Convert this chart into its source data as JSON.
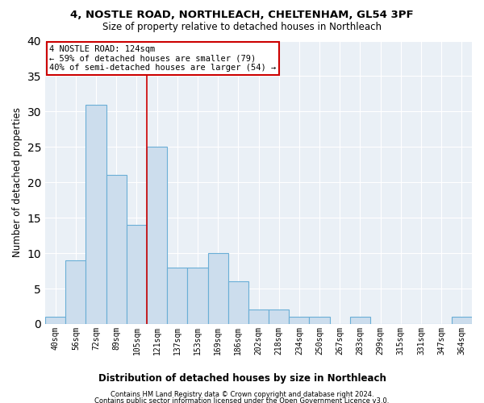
{
  "title1": "4, NOSTLE ROAD, NORTHLEACH, CHELTENHAM, GL54 3PF",
  "title2": "Size of property relative to detached houses in Northleach",
  "xlabel": "Distribution of detached houses by size in Northleach",
  "ylabel": "Number of detached properties",
  "bar_color": "#ccdded",
  "bar_edge_color": "#6aaed6",
  "background_color": "#eaf0f6",
  "grid_color": "#ffffff",
  "annotation_text": "4 NOSTLE ROAD: 124sqm\n← 59% of detached houses are smaller (79)\n40% of semi-detached houses are larger (54) →",
  "ylim": [
    0,
    40
  ],
  "yticks": [
    0,
    5,
    10,
    15,
    20,
    25,
    30,
    35,
    40
  ],
  "footer1": "Contains HM Land Registry data © Crown copyright and database right 2024.",
  "footer2": "Contains public sector information licensed under the Open Government Licence v3.0.",
  "all_bar_labels": [
    "40sqm",
    "56sqm",
    "72sqm",
    "89sqm",
    "105sqm",
    "121sqm",
    "137sqm",
    "153sqm",
    "169sqm",
    "186sqm",
    "202sqm",
    "218sqm",
    "234sqm",
    "250sqm",
    "267sqm",
    "283sqm",
    "299sqm",
    "315sqm",
    "331sqm",
    "347sqm",
    "364sqm"
  ],
  "all_bar_values": [
    1,
    9,
    31,
    21,
    14,
    25,
    8,
    8,
    10,
    6,
    2,
    2,
    1,
    1,
    0,
    1,
    0,
    0,
    0,
    0,
    1
  ],
  "red_line_index": 5
}
